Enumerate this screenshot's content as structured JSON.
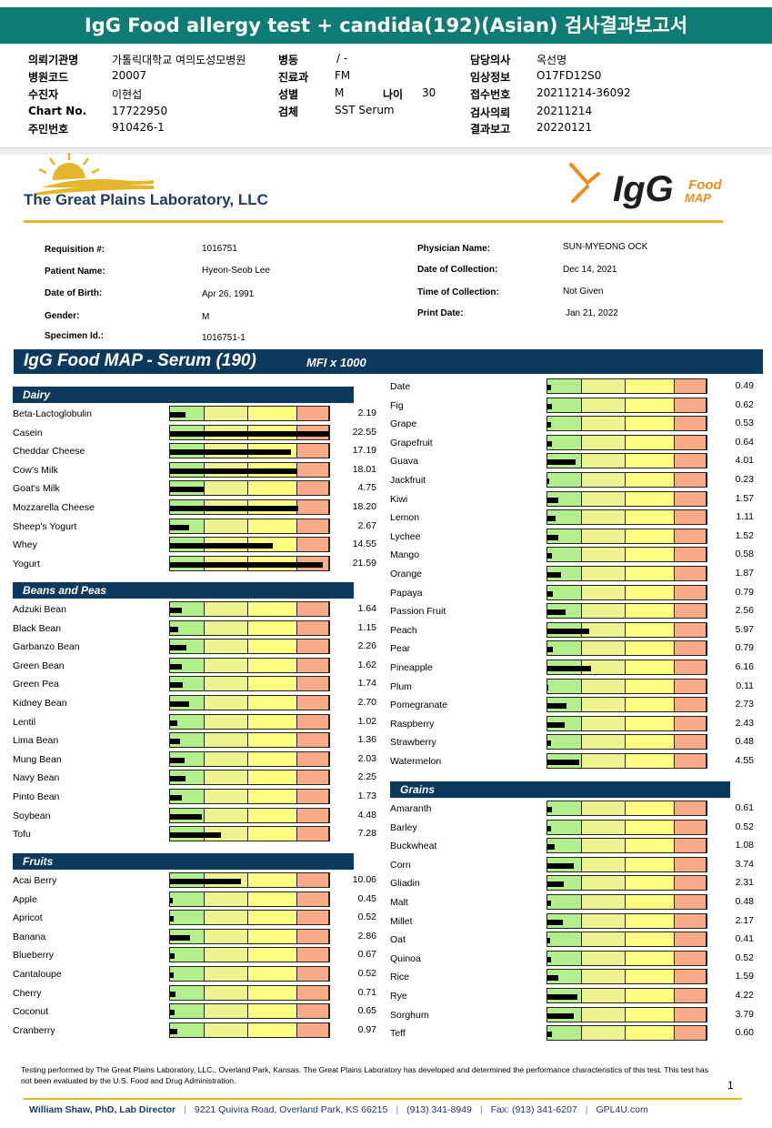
{
  "report_title": "IgG Food allergy test + candida(192)(Asian) 검사결과보고서",
  "kr_info": [
    {
      "label": "의뢰기관명",
      "value": "가톨릭대학교 여의도성모병원"
    },
    {
      "label": "병원코드",
      "value": "20007"
    },
    {
      "label": "수진자",
      "value": "이현섭"
    },
    {
      "label": "Chart No.",
      "value": "17722950"
    },
    {
      "label": "주민번호",
      "value": "910426-1"
    },
    {
      "label": "병동",
      "value": "/ -"
    },
    {
      "label": "진료과",
      "value": "FM"
    },
    {
      "label": "성별",
      "value": "M"
    },
    {
      "label": "나이",
      "value": "30"
    },
    {
      "label": "검체",
      "value": "SST Serum"
    },
    {
      "label": "담당의사",
      "value": "옥선명"
    },
    {
      "label": "임상정보",
      "value": "O17FD12S0"
    },
    {
      "label": "접수번호",
      "value": "20211214-36092"
    },
    {
      "label": "검사의뢰",
      "value": "20211214"
    },
    {
      "label": "결과보고",
      "value": "20220121"
    }
  ],
  "lab_name": "The Great Plains Laboratory, LLC",
  "brand": {
    "igg": "IgG",
    "food": "Food",
    "map": "MAP"
  },
  "patient": [
    {
      "label": "Requisition #:",
      "value": "1016751"
    },
    {
      "label": "Patient Name:",
      "value": "Hyeon-Seob Lee"
    },
    {
      "label": "Date of Birth:",
      "value": "Apr 26, 1991"
    },
    {
      "label": "Gender:",
      "value": "M"
    },
    {
      "label": "Specimen Id.:",
      "value": "1016751-1"
    },
    {
      "label": "Physician Name:",
      "value": "SUN-MYEONG OCK"
    },
    {
      "label": "Date of Collection:",
      "value": "Dec 14, 2021"
    },
    {
      "label": "Time of Collection:",
      "value": "Not Given"
    },
    {
      "label": "Print Date:",
      "value": "Jan 21, 2022"
    }
  ],
  "map_title": "IgG Food MAP - Serum (190)",
  "map_unit": "MFI x 1000",
  "scale_max": 22.55,
  "colors": {
    "navy": "#0c3a5e",
    "teal": "#0e7b75",
    "gold": "#e3b62b",
    "green": "#b3ef8c",
    "lime": "#eef390",
    "yellow": "#fdff82",
    "orange": "#f8ab86"
  },
  "sections": [
    {
      "name": "Dairy",
      "items": [
        {
          "food": "Beta-Lactoglobulin",
          "value": 2.19
        },
        {
          "food": "Casein",
          "value": 22.55
        },
        {
          "food": "Cheddar Cheese",
          "value": 17.19
        },
        {
          "food": "Cow's Milk",
          "value": 18.01
        },
        {
          "food": "Goat's Milk",
          "value": 4.75
        },
        {
          "food": "Mozzarella Cheese",
          "value": 18.2
        },
        {
          "food": "Sheep's Yogurt",
          "value": 2.67
        },
        {
          "food": "Whey",
          "value": 14.55
        },
        {
          "food": "Yogurt",
          "value": 21.59
        }
      ]
    },
    {
      "name": "Beans and Peas",
      "items": [
        {
          "food": "Adzuki Bean",
          "value": 1.64
        },
        {
          "food": "Black Bean",
          "value": 1.15
        },
        {
          "food": "Garbanzo Bean",
          "value": 2.26
        },
        {
          "food": "Green Bean",
          "value": 1.62
        },
        {
          "food": "Green Pea",
          "value": 1.74
        },
        {
          "food": "Kidney Bean",
          "value": 2.7
        },
        {
          "food": "Lentil",
          "value": 1.02
        },
        {
          "food": "Lima Bean",
          "value": 1.36
        },
        {
          "food": "Mung Bean",
          "value": 2.03
        },
        {
          "food": "Navy Bean",
          "value": 2.25
        },
        {
          "food": "Pinto Bean",
          "value": 1.73
        },
        {
          "food": "Soybean",
          "value": 4.48
        },
        {
          "food": "Tofu",
          "value": 7.28
        }
      ]
    },
    {
      "name": "Fruits",
      "items": [
        {
          "food": "Acai Berry",
          "value": 10.06
        },
        {
          "food": "Apple",
          "value": 0.45
        },
        {
          "food": "Apricot",
          "value": 0.52
        },
        {
          "food": "Banana",
          "value": 2.86
        },
        {
          "food": "Blueberry",
          "value": 0.67
        },
        {
          "food": "Cantaloupe",
          "value": 0.52
        },
        {
          "food": "Cherry",
          "value": 0.71
        },
        {
          "food": "Coconut",
          "value": 0.65
        },
        {
          "food": "Cranberry",
          "value": 0.97
        },
        {
          "food": "Date",
          "value": 0.49
        },
        {
          "food": "Fig",
          "value": 0.62
        },
        {
          "food": "Grape",
          "value": 0.53
        },
        {
          "food": "Grapefruit",
          "value": 0.64
        },
        {
          "food": "Guava",
          "value": 4.01
        },
        {
          "food": "Jackfruit",
          "value": 0.23
        },
        {
          "food": "Kiwi",
          "value": 1.57
        },
        {
          "food": "Lemon",
          "value": 1.11
        },
        {
          "food": "Lychee",
          "value": 1.52
        },
        {
          "food": "Mango",
          "value": 0.58
        },
        {
          "food": "Orange",
          "value": 1.87
        },
        {
          "food": "Papaya",
          "value": 0.79
        },
        {
          "food": "Passion Fruit",
          "value": 2.56
        },
        {
          "food": "Peach",
          "value": 5.97
        },
        {
          "food": "Pear",
          "value": 0.79
        },
        {
          "food": "Pineapple",
          "value": 6.16
        },
        {
          "food": "Plum",
          "value": 0.11
        },
        {
          "food": "Pomegranate",
          "value": 2.73
        },
        {
          "food": "Raspberry",
          "value": 2.43
        },
        {
          "food": "Strawberry",
          "value": 0.48
        },
        {
          "food": "Watermelon",
          "value": 4.55
        }
      ]
    },
    {
      "name": "Grains",
      "items": [
        {
          "food": "Amaranth",
          "value": 0.61
        },
        {
          "food": "Barley",
          "value": 0.52
        },
        {
          "food": "Buckwheat",
          "value": 1.08
        },
        {
          "food": "Corn",
          "value": 3.74
        },
        {
          "food": "Gliadin",
          "value": 2.31
        },
        {
          "food": "Malt",
          "value": 0.48
        },
        {
          "food": "Millet",
          "value": 2.17
        },
        {
          "food": "Oat",
          "value": 0.41
        },
        {
          "food": "Quinoa",
          "value": 0.52
        },
        {
          "food": "Rice",
          "value": 1.59
        },
        {
          "food": "Rye",
          "value": 4.22
        },
        {
          "food": "Sorghum",
          "value": 3.79
        },
        {
          "food": "Teff",
          "value": 0.6
        }
      ]
    }
  ],
  "footnote": "Testing performed by The Great Plains Laboratory, LLC., Overland Park, Kansas.  The Great Plains Laboratory has developed and determined the performance characteristics of this test.  This test has not been evaluated by the U.S. Food and Drug Administration.",
  "page_number": "1",
  "footer": {
    "director": "William Shaw, PhD, Lab Director",
    "address": "9221 Quivira Road, Overland Park, KS 66215",
    "phone": "(913) 341-8949",
    "fax": "Fax: (913) 341-6207",
    "web": "GPL4U.com",
    "separator": "|"
  }
}
